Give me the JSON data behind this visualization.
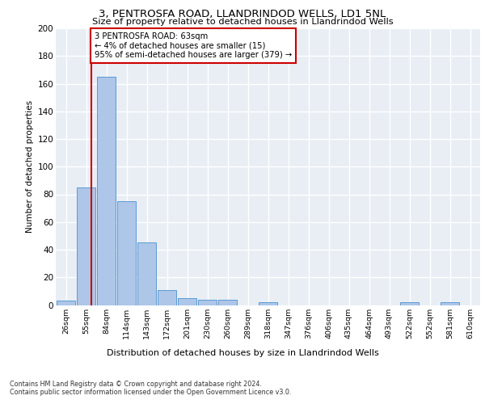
{
  "title_line1": "3, PENTROSFA ROAD, LLANDRINDOD WELLS, LD1 5NL",
  "title_line2": "Size of property relative to detached houses in Llandrindod Wells",
  "xlabel": "Distribution of detached houses by size in Llandrindod Wells",
  "ylabel": "Number of detached properties",
  "footnote1": "Contains HM Land Registry data © Crown copyright and database right 2024.",
  "footnote2": "Contains public sector information licensed under the Open Government Licence v3.0.",
  "bin_labels": [
    "26sqm",
    "55sqm",
    "84sqm",
    "114sqm",
    "143sqm",
    "172sqm",
    "201sqm",
    "230sqm",
    "260sqm",
    "289sqm",
    "318sqm",
    "347sqm",
    "376sqm",
    "406sqm",
    "435sqm",
    "464sqm",
    "493sqm",
    "522sqm",
    "552sqm",
    "581sqm",
    "610sqm"
  ],
  "bar_values": [
    3,
    85,
    165,
    75,
    45,
    11,
    5,
    4,
    4,
    0,
    2,
    0,
    0,
    0,
    0,
    0,
    0,
    2,
    0,
    2,
    0
  ],
  "bar_color": "#aec6e8",
  "bar_edge_color": "#5b9bd5",
  "plot_bg_color": "#e8eef4",
  "grid_color": "#ffffff",
  "annotation_text": "3 PENTROSFA ROAD: 63sqm\n← 4% of detached houses are smaller (15)\n95% of semi-detached houses are larger (379) →",
  "annotation_box_color": "#ffffff",
  "annotation_box_edge_color": "#cc0000",
  "vline_color": "#cc0000",
  "ylim": [
    0,
    200
  ],
  "yticks": [
    0,
    20,
    40,
    60,
    80,
    100,
    120,
    140,
    160,
    180,
    200
  ]
}
